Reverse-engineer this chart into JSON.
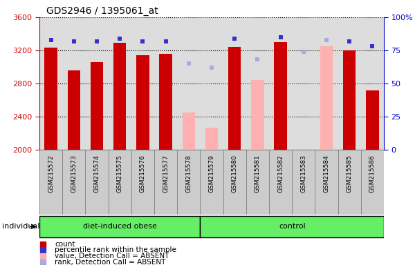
{
  "title": "GDS2946 / 1395061_at",
  "samples": [
    "GSM215572",
    "GSM215573",
    "GSM215574",
    "GSM215575",
    "GSM215576",
    "GSM215577",
    "GSM215578",
    "GSM215579",
    "GSM215580",
    "GSM215581",
    "GSM215582",
    "GSM215583",
    "GSM215584",
    "GSM215585",
    "GSM215586"
  ],
  "bar_values": [
    3230,
    2960,
    3060,
    3290,
    3140,
    3160,
    2450,
    2270,
    3245,
    2840,
    3300,
    null,
    3250,
    3200,
    2720
  ],
  "bar_colors": [
    "#cc0000",
    "#cc0000",
    "#cc0000",
    "#cc0000",
    "#cc0000",
    "#cc0000",
    "#ffb0b0",
    "#ffb0b0",
    "#cc0000",
    "#ffb0b0",
    "#cc0000",
    "#ffb0b0",
    "#ffb0b0",
    "#cc0000",
    "#cc0000"
  ],
  "rank_values": [
    83,
    82,
    82,
    84,
    82,
    82,
    65,
    62,
    84,
    68,
    85,
    74,
    83,
    82,
    78
  ],
  "rank_colors": [
    "#3333cc",
    "#3333cc",
    "#3333cc",
    "#3333cc",
    "#3333cc",
    "#3333cc",
    "#aaaadd",
    "#aaaadd",
    "#3333cc",
    "#aaaadd",
    "#3333cc",
    "#aaaadd",
    "#aaaadd",
    "#3333cc",
    "#3333cc"
  ],
  "absent_flags": [
    false,
    false,
    false,
    false,
    false,
    false,
    true,
    true,
    false,
    true,
    false,
    true,
    true,
    false,
    false
  ],
  "group_labels": [
    "diet-induced obese",
    "control"
  ],
  "group_boundaries": [
    0,
    6,
    7,
    14
  ],
  "ylim_left": [
    2000,
    3600
  ],
  "ylim_right": [
    0,
    100
  ],
  "yticks_left": [
    2000,
    2400,
    2800,
    3200,
    3600
  ],
  "yticks_right": [
    0,
    25,
    50,
    75,
    100
  ],
  "bar_width": 0.55,
  "plot_bg": "#dddddd",
  "legend_items": [
    {
      "label": "count",
      "color": "#cc0000"
    },
    {
      "label": "percentile rank within the sample",
      "color": "#3333cc"
    },
    {
      "label": "value, Detection Call = ABSENT",
      "color": "#ffb0b0"
    },
    {
      "label": "rank, Detection Call = ABSENT",
      "color": "#aaaadd"
    }
  ]
}
